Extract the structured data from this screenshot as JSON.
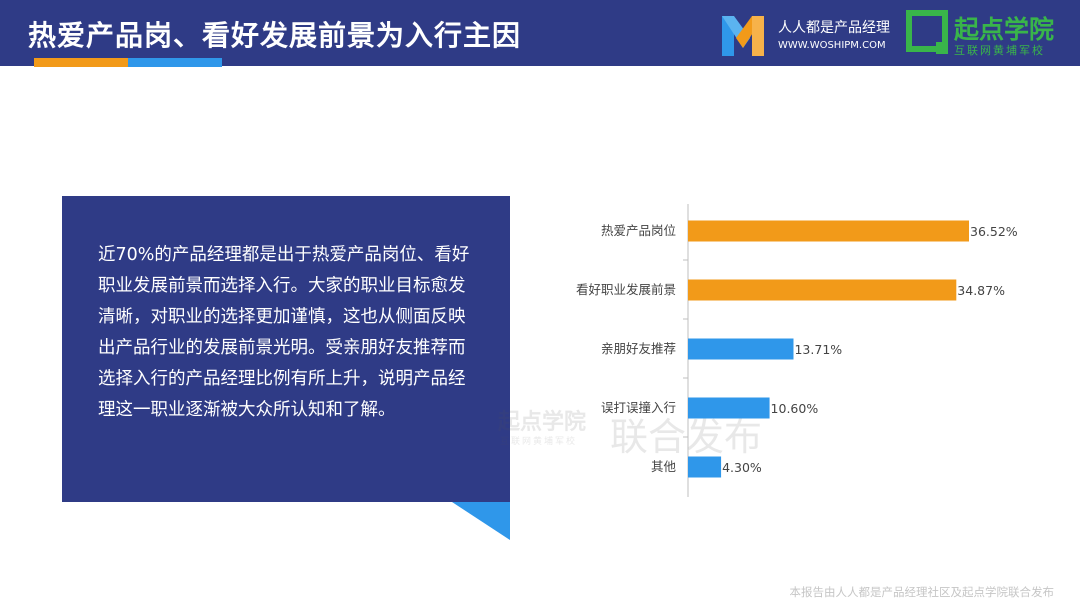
{
  "header": {
    "title": "热爱产品岗、看好发展前景为入行主因",
    "brand1": {
      "name": "人人都是产品经理",
      "url": "WWW.WOSHIPM.COM"
    },
    "brand2": {
      "name": "起点学院",
      "slogan": "互联网黄埔军校"
    }
  },
  "textbox": {
    "body": "近70%的产品经理都是出于热爱产品岗位、看好职业发展前景而选择入行。大家的职业目标愈发清晰，对职业的选择更加谨慎，这也从侧面反映出产品行业的发展前景光明。受亲朋好友推荐而选择入行的产品经理比例有所上升，说明产品经理这一职业逐渐被大众所认知和了解。"
  },
  "watermark": {
    "brand": "起点学院",
    "slogan": "互联网黄埔军校",
    "text": "联合发布"
  },
  "chart_data": {
    "type": "bar",
    "orientation": "horizontal",
    "categories": [
      "热爱产品岗位",
      "看好职业发展前景",
      "亲朋好友推荐",
      "误打误撞入行",
      "其他"
    ],
    "values": [
      36.52,
      34.87,
      13.71,
      10.6,
      4.3
    ],
    "value_labels": [
      "36.52%",
      "34.87%",
      "13.71%",
      "10.60%",
      "4.30%"
    ],
    "colors": [
      "#f29a19",
      "#f29a19",
      "#2f97ea",
      "#2f97ea",
      "#2f97ea"
    ],
    "xlim": [
      0,
      40
    ],
    "grid": false,
    "title": "",
    "xlabel": "",
    "ylabel": ""
  },
  "footer": {
    "note": "本报告由人人都是产品经理社区及起点学院联合发布"
  },
  "colors": {
    "header_bg": "#2f3b86",
    "accent_orange": "#f29a19",
    "accent_blue": "#2f97ea",
    "brand_green": "#39b54a"
  }
}
